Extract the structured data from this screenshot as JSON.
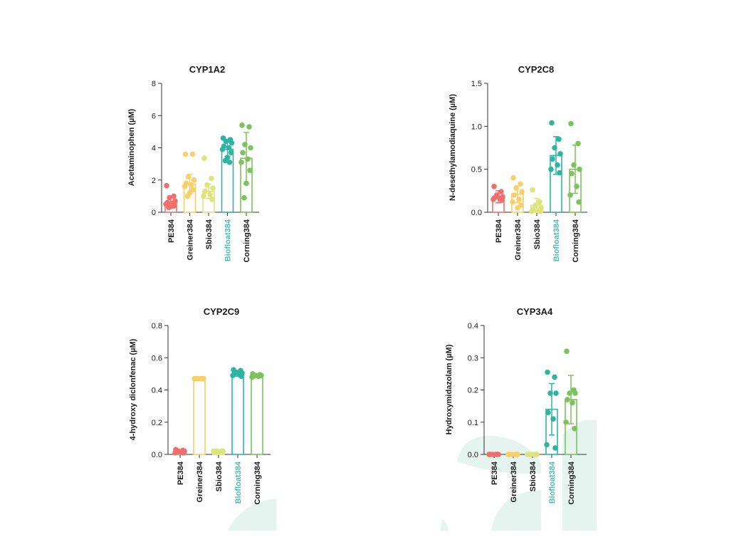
{
  "theme": {
    "text_color": "#1a1a1a",
    "axis_color": "#333333",
    "highlight_label_color": "#4bbfae",
    "decoration_color": "#e6f4f0",
    "group_colors": {
      "PE384": "#ef6f6c",
      "Greiner384": "#f9cf6a",
      "Sbio384": "#dde47c",
      "Biofloat384": "#2eb4a3",
      "Corning384": "#7cc35c"
    }
  },
  "chart_data": [
    {
      "type": "bar",
      "title": "CYP1A2",
      "ylabel": "Acetaminophen (µM)",
      "ylim": [
        0,
        8
      ],
      "yticks": [
        "0",
        "2",
        "4",
        "6",
        "8"
      ],
      "categories": [
        "PE384",
        "Greiner384",
        "Sbio384",
        "Biofloat384",
        "Corning384"
      ],
      "highlight_category": "Biofloat384",
      "values": [
        0.6,
        1.75,
        1.3,
        3.9,
        3.35
      ],
      "error": [
        0.35,
        0.6,
        0.45,
        0.45,
        1.6
      ],
      "points": [
        [
          1.65,
          1.0,
          0.9,
          0.7,
          0.6,
          0.55,
          0.5,
          0.4,
          0.35,
          0.3
        ],
        [
          3.6,
          3.6,
          2.2,
          2.0,
          1.8,
          1.7,
          1.6,
          1.4,
          1.2,
          1.0
        ],
        [
          3.35,
          2.1,
          1.7,
          1.5,
          1.3,
          1.1,
          1.0,
          0.8
        ],
        [
          4.6,
          4.5,
          4.4,
          4.3,
          4.1,
          4.0,
          3.9,
          3.7,
          3.4,
          3.2,
          3.1
        ],
        [
          5.4,
          5.3,
          4.2,
          4.0,
          3.7,
          3.3,
          3.1,
          2.6,
          1.8,
          0.9
        ]
      ]
    },
    {
      "type": "bar",
      "title": "CYP2C8",
      "ylabel": "N-desethylamodiaquine (µM)",
      "ylim": [
        0,
        1.5
      ],
      "yticks": [
        "0.0",
        "0.5",
        "1.0",
        "1.5"
      ],
      "categories": [
        "PE384",
        "Greiner384",
        "Sbio384",
        "Biofloat384",
        "Corning384"
      ],
      "highlight_category": "Biofloat384",
      "values": [
        0.18,
        0.21,
        0.08,
        0.66,
        0.5
      ],
      "error": [
        0.07,
        0.1,
        0.08,
        0.22,
        0.28
      ],
      "points": [
        [
          0.3,
          0.24,
          0.2,
          0.18,
          0.17,
          0.16,
          0.15,
          0.14
        ],
        [
          0.4,
          0.33,
          0.28,
          0.24,
          0.2,
          0.15,
          0.12,
          0.08,
          0.05
        ],
        [
          0.26,
          0.12,
          0.08,
          0.05,
          0.03,
          0.02,
          0.01,
          0.01
        ],
        [
          1.04,
          0.85,
          0.75,
          0.68,
          0.62,
          0.55,
          0.5,
          0.46
        ],
        [
          1.03,
          0.8,
          0.55,
          0.5,
          0.45,
          0.3,
          0.2,
          0.12
        ]
      ]
    },
    {
      "type": "bar",
      "title": "CYP2C9",
      "ylabel": "4-hydroxy diclonfenac (µM)",
      "ylim": [
        0,
        0.8
      ],
      "yticks": [
        "0.0",
        "0.2",
        "0.4",
        "0.6",
        "0.8"
      ],
      "categories": [
        "PE384",
        "Greiner384",
        "Sbio384",
        "Biofloat384",
        "Corning384"
      ],
      "highlight_category": "Biofloat384",
      "values": [
        0.02,
        0.47,
        0.02,
        0.5,
        0.49
      ],
      "error": [
        0.006,
        0.004,
        0.004,
        0.015,
        0.007
      ],
      "points": [
        [
          0.03,
          0.025,
          0.02,
          0.02,
          0.015,
          0.015,
          0.01,
          0.01
        ],
        [
          0.47,
          0.47,
          0.47,
          0.47,
          0.47,
          0.47,
          0.47,
          0.47
        ],
        [
          0.02,
          0.02,
          0.02,
          0.02,
          0.015,
          0.015,
          0.02,
          0.02
        ],
        [
          0.525,
          0.52,
          0.51,
          0.505,
          0.5,
          0.495,
          0.49,
          0.485
        ],
        [
          0.5,
          0.495,
          0.49,
          0.49,
          0.485,
          0.485,
          0.48,
          0.49
        ]
      ]
    },
    {
      "type": "bar",
      "title": "CYP3A4",
      "ylabel": "Hydroxymidazolam (µM)",
      "ylim": [
        0,
        0.4
      ],
      "yticks": [
        "0.0",
        "0.1",
        "0.2",
        "0.3",
        "0.4"
      ],
      "categories": [
        "PE384",
        "Greiner384",
        "Sbio384",
        "Biofloat384",
        "Corning384"
      ],
      "highlight_category": "Biofloat384",
      "values": [
        0.0,
        0.0,
        0.0,
        0.14,
        0.17
      ],
      "error": [
        0.001,
        0.001,
        0.001,
        0.08,
        0.075
      ],
      "points": [
        [
          0.0,
          0.0,
          0.0,
          0.0,
          0.0,
          0.0,
          0.0,
          0.0
        ],
        [
          0.0,
          0.0,
          0.0,
          0.0,
          0.0,
          0.0,
          0.0,
          0.0
        ],
        [
          0.0,
          0.0,
          0.0,
          0.0,
          0.0,
          0.0,
          0.0,
          0.0
        ],
        [
          0.255,
          0.24,
          0.19,
          0.19,
          0.13,
          0.11,
          0.03,
          0.02
        ],
        [
          0.32,
          0.2,
          0.19,
          0.19,
          0.17,
          0.16,
          0.1,
          0.08
        ]
      ]
    }
  ]
}
